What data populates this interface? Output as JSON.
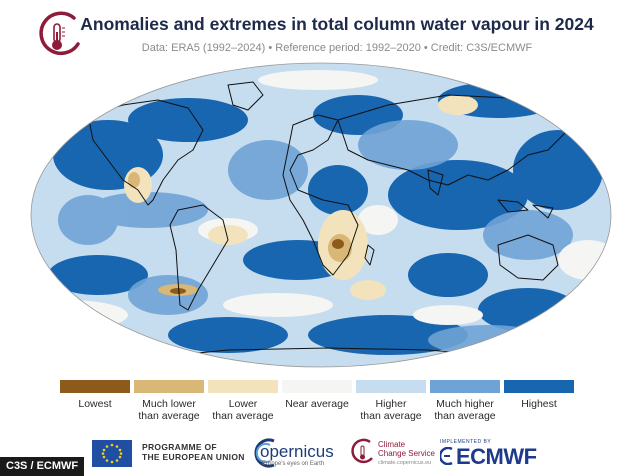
{
  "header": {
    "title": "Anomalies and extremes in total column water vapour in 2024",
    "subtitle": "Data: ERA5 (1992–2024) • Reference period: 1992–2020 • Credit: C3S/ECMWF"
  },
  "legend": {
    "items": [
      {
        "label_line1": "Lowest",
        "label_line2": "",
        "color": "#8c5a1a"
      },
      {
        "label_line1": "Much lower",
        "label_line2": "than average",
        "color": "#d9b776"
      },
      {
        "label_line1": "Lower",
        "label_line2": "than average",
        "color": "#f3e3bd"
      },
      {
        "label_line1": "Near average",
        "label_line2": "",
        "color": "#f5f5f3"
      },
      {
        "label_line1": "Higher",
        "label_line2": "than average",
        "color": "#c6dcef"
      },
      {
        "label_line1": "Much higher",
        "label_line2": "than average",
        "color": "#6fa3d5"
      },
      {
        "label_line1": "Highest",
        "label_line2": "",
        "color": "#1865b0"
      }
    ]
  },
  "footer": {
    "eu_line1": "PROGRAMME OF",
    "eu_line2": "THE EUROPEAN UNION",
    "copernicus": "opernicus",
    "copernicus_sub": "Europe's eyes on Earth",
    "c3s_line1": "Climate",
    "c3s_line2": "Change Service",
    "c3s_sub": "climate.copernicus.eu",
    "ecmwf_small": "IMPLEMENTED BY",
    "ecmwf": "ECMWF"
  },
  "credit": "C3S / ECMWF",
  "colors": {
    "title": "#1e2a4a",
    "logo": "#8e1b3a",
    "ocean_base": "#c6dcef"
  }
}
